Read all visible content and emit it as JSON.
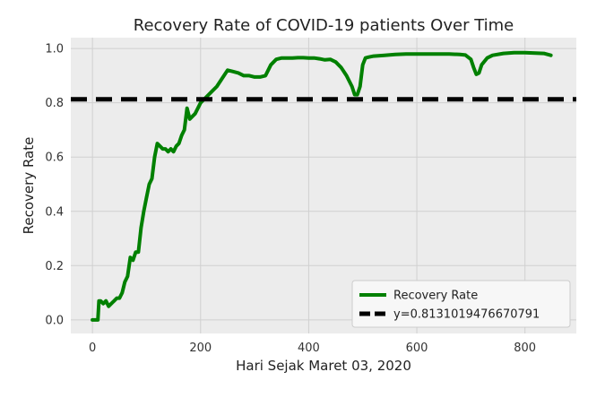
{
  "chart_data": {
    "type": "line",
    "title": "Recovery Rate of COVID-19 patients Over Time",
    "xlabel": "Hari Sejak Maret 03, 2020",
    "ylabel": "Recovery Rate",
    "xlim": [
      -40,
      895
    ],
    "ylim": [
      -0.05,
      1.04
    ],
    "x_ticks": [
      0,
      200,
      400,
      600,
      800
    ],
    "y_ticks": [
      0.0,
      0.2,
      0.4,
      0.6,
      0.8,
      1.0
    ],
    "x_tick_labels": [
      "0",
      "200",
      "400",
      "600",
      "800"
    ],
    "y_tick_labels": [
      "0.0",
      "0.2",
      "0.4",
      "0.6",
      "0.8",
      "1.0"
    ],
    "grid": true,
    "legend_position": "lower-right",
    "series": [
      {
        "name": "Recovery Rate",
        "color": "#008000",
        "x": [
          0,
          5,
          10,
          12,
          15,
          20,
          25,
          30,
          35,
          40,
          45,
          50,
          55,
          60,
          65,
          70,
          75,
          80,
          85,
          90,
          95,
          100,
          105,
          110,
          115,
          120,
          125,
          130,
          135,
          140,
          145,
          150,
          155,
          160,
          165,
          170,
          175,
          180,
          185,
          190,
          195,
          200,
          210,
          220,
          230,
          240,
          250,
          260,
          270,
          280,
          290,
          300,
          310,
          320,
          330,
          340,
          350,
          360,
          370,
          380,
          390,
          400,
          410,
          420,
          430,
          440,
          450,
          460,
          470,
          480,
          485,
          490,
          495,
          500,
          505,
          510,
          520,
          540,
          560,
          580,
          600,
          620,
          640,
          660,
          680,
          690,
          700,
          705,
          710,
          715,
          720,
          730,
          740,
          760,
          780,
          800,
          820,
          835,
          848
        ],
        "values": [
          0.0,
          0.0,
          0.0,
          0.07,
          0.07,
          0.06,
          0.07,
          0.05,
          0.06,
          0.07,
          0.08,
          0.08,
          0.1,
          0.14,
          0.16,
          0.23,
          0.22,
          0.25,
          0.25,
          0.34,
          0.4,
          0.45,
          0.5,
          0.52,
          0.6,
          0.65,
          0.64,
          0.63,
          0.63,
          0.62,
          0.63,
          0.62,
          0.64,
          0.65,
          0.68,
          0.7,
          0.78,
          0.74,
          0.75,
          0.76,
          0.78,
          0.8,
          0.82,
          0.84,
          0.86,
          0.89,
          0.92,
          0.915,
          0.91,
          0.9,
          0.9,
          0.895,
          0.895,
          0.9,
          0.94,
          0.96,
          0.965,
          0.965,
          0.965,
          0.966,
          0.966,
          0.965,
          0.965,
          0.962,
          0.958,
          0.96,
          0.95,
          0.93,
          0.9,
          0.86,
          0.83,
          0.83,
          0.86,
          0.94,
          0.965,
          0.968,
          0.972,
          0.975,
          0.978,
          0.98,
          0.98,
          0.98,
          0.98,
          0.98,
          0.978,
          0.976,
          0.96,
          0.93,
          0.905,
          0.91,
          0.94,
          0.965,
          0.975,
          0.982,
          0.985,
          0.985,
          0.983,
          0.982,
          0.975
        ]
      }
    ],
    "reference_lines": [
      {
        "name": "y=0.8131019476670791",
        "y": 0.8131019476670791,
        "color": "#000000",
        "style": "dashed"
      }
    ],
    "colors": {
      "plot_bg": "#ececec",
      "grid": "#d0d0d0"
    }
  }
}
